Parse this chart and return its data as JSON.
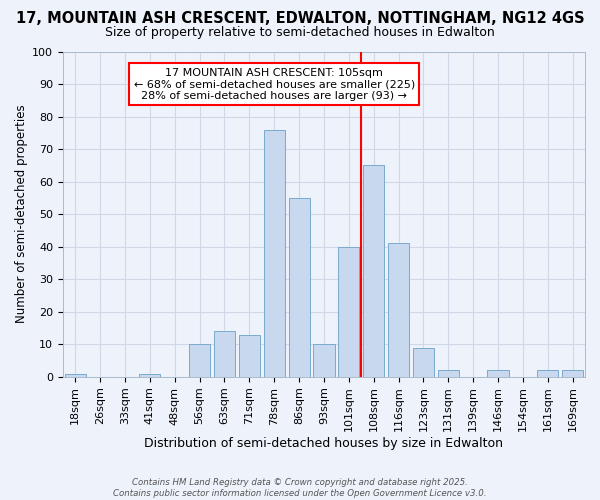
{
  "title1": "17, MOUNTAIN ASH CRESCENT, EDWALTON, NOTTINGHAM, NG12 4GS",
  "title2": "Size of property relative to semi-detached houses in Edwalton",
  "xlabel": "Distribution of semi-detached houses by size in Edwalton",
  "ylabel": "Number of semi-detached properties",
  "categories": [
    "18sqm",
    "26sqm",
    "33sqm",
    "41sqm",
    "48sqm",
    "56sqm",
    "63sqm",
    "71sqm",
    "78sqm",
    "86sqm",
    "93sqm",
    "101sqm",
    "108sqm",
    "116sqm",
    "123sqm",
    "131sqm",
    "139sqm",
    "146sqm",
    "154sqm",
    "161sqm",
    "169sqm"
  ],
  "values": [
    1,
    0,
    0,
    1,
    0,
    10,
    14,
    13,
    76,
    55,
    10,
    40,
    65,
    41,
    9,
    2,
    0,
    2,
    0,
    2,
    2
  ],
  "bar_color": "#c8d8ee",
  "bar_edge_color": "#7aaacc",
  "annotation_line1": "17 MOUNTAIN ASH CRESCENT: 105sqm",
  "annotation_line2": "← 68% of semi-detached houses are smaller (225)",
  "annotation_line3": "28% of semi-detached houses are larger (93) →",
  "ylim": [
    0,
    100
  ],
  "grid_color": "#d0d8e8",
  "background_color": "#eef2fb",
  "footer_line1": "Contains HM Land Registry data © Crown copyright and database right 2025.",
  "footer_line2": "Contains public sector information licensed under the Open Government Licence v3.0.",
  "title1_fontsize": 10.5,
  "title2_fontsize": 9,
  "xlabel_fontsize": 9,
  "ylabel_fontsize": 8.5,
  "tick_fontsize": 8,
  "annot_fontsize": 8
}
